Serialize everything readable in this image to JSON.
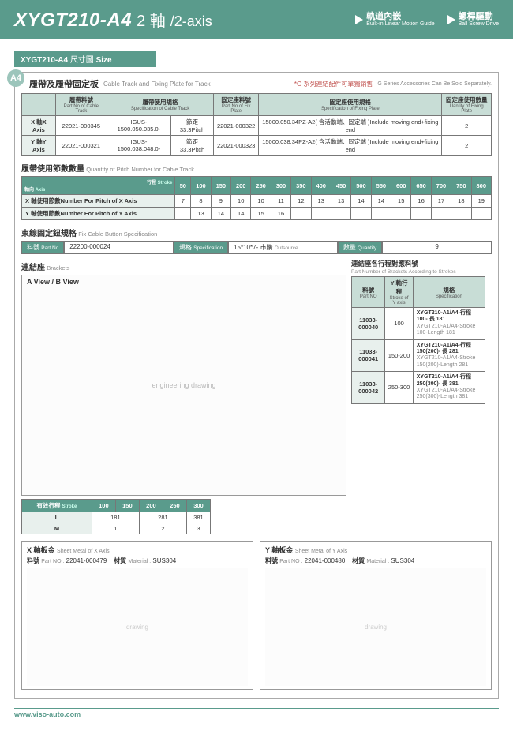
{
  "header": {
    "product_code": "XYGT210-A4",
    "axis_zh": "2 軸",
    "axis_en": "/2-axis",
    "features": [
      {
        "zh": "軌道內嵌",
        "en": "Built-in Linear Motion Guide"
      },
      {
        "zh": "螺桿驅動",
        "en": "Ball Screw Drive"
      }
    ]
  },
  "section_bar": {
    "code": "XYGT210-A4",
    "zh": "尺寸圖",
    "en": "Size"
  },
  "badge": "A4",
  "cable_track": {
    "title_zh": "履帶及履帶固定板",
    "title_en": "Cable Track and Fixing Plate for Track",
    "note_zh": "*G 系列連結配件可單獨銷售",
    "note_en": "G Series Accessories Can Be Sold Separately.",
    "headers": {
      "h1_zh": "履帶料號",
      "h1_en": "Part No of Cable Track",
      "h2_zh": "履帶使用規格",
      "h2_en": "Specification of Cable Track",
      "h3_zh": "固定座料號",
      "h3_en": "Part No of Fix Plate",
      "h4_zh": "固定座使用規格",
      "h4_en": "Specification of Fixing Plate",
      "h5_zh": "固定座使用數量",
      "h5_en": "Uantity of Fixing Plate"
    },
    "rows": [
      {
        "axis_zh": "X 軸",
        "axis_en": "X Axis",
        "partno": "22021-000345",
        "spec": "IGUS-1500.050.035.0-",
        "pitch_zh": "節距",
        "pitch_en": "Pitch",
        "pitch_val": "33.3",
        "fix_partno": "22021-000322",
        "fix_spec_zh": "15000.050.34PZ-A2( 含活動端、固定端 )",
        "fix_spec_en": "Include moving end+fixing end",
        "qty": "2"
      },
      {
        "axis_zh": "Y 軸",
        "axis_en": "Y Axis",
        "partno": "22021-000321",
        "spec": "IGUS-1500.038.048.0-",
        "pitch_zh": "節距",
        "pitch_en": "Pitch",
        "pitch_val": "33.3",
        "fix_partno": "22021-000323",
        "fix_spec_zh": "15000.038.34PZ-A2( 含活動端、固定端 )",
        "fix_spec_en": "Include moving end+fixing end",
        "qty": "2"
      }
    ]
  },
  "pitch_qty": {
    "title_zh": "履帶使用節數數量",
    "title_en": "Quantity of Pitch Number for Cable Track",
    "row_hdr_zh": "軸向",
    "row_hdr_en": "Axis",
    "col_hdr_zh": "行程",
    "col_hdr_en": "Stroke",
    "cols": [
      "50",
      "100",
      "150",
      "200",
      "250",
      "300",
      "350",
      "400",
      "450",
      "500",
      "550",
      "600",
      "650",
      "700",
      "750",
      "800"
    ],
    "rows": [
      {
        "label_zh": "X 軸使用節數",
        "label_en": "Number For Pitch of X Axis",
        "vals": [
          "7",
          "8",
          "9",
          "10",
          "10",
          "11",
          "12",
          "13",
          "13",
          "14",
          "14",
          "15",
          "16",
          "17",
          "18",
          "19"
        ]
      },
      {
        "label_zh": "Y 軸使用節數",
        "label_en": "Number For Pitch of Y Axis",
        "vals": [
          "",
          "13",
          "14",
          "14",
          "15",
          "16",
          "",
          "",
          "",
          "",
          "",
          "",
          "",
          "",
          "",
          ""
        ]
      }
    ]
  },
  "fix_cable": {
    "title_zh": "束線固定鈕規格",
    "title_en": "Fix Cable Button Specification",
    "lbl1_zh": "料號",
    "lbl1_en": "Part No",
    "val1": "22200-000024",
    "lbl2_zh": "規格",
    "lbl2_en": "Specification",
    "val2": "15*10*7- 市購",
    "val2_en": "Outsource",
    "lbl3_zh": "數量",
    "lbl3_en": "Quantity",
    "val3": "9"
  },
  "brackets": {
    "title_zh": "連結座",
    "title_en": "Brackets",
    "table_title_zh": "連結座各行程對應料號",
    "table_title_en": "Part Number of Brackets According to Strokes",
    "headers": {
      "h1_zh": "料號",
      "h1_en": "Part NO",
      "h2_zh": "Y 軸行程",
      "h2_en": "Stroke of Y axis",
      "h3_zh": "規格",
      "h3_en": "Specification"
    },
    "rows": [
      {
        "part": "11033-000040",
        "stroke": "100",
        "spec_main": "XYGT210-A1/A4-行程 100- 長 181",
        "spec_sub": "XYGT210-A1/A4-Stroke 100-Length 181"
      },
      {
        "part": "11033-000041",
        "stroke": "150-200",
        "spec_main": "XYGT210-A1/A4-行程 150(200)- 長 281",
        "spec_sub": "XYGT210-A1/A4-Stroke 150(200)-Length 281"
      },
      {
        "part": "11033-000042",
        "stroke": "250-300",
        "spec_main": "XYGT210-A1/A4-行程 250(300)- 長 381",
        "spec_sub": "XYGT210-A1/A4-Stroke 250(300)-Length 381"
      }
    ],
    "stroke_table": {
      "hdr_zh": "有效行程",
      "hdr_en": "Stroke",
      "cols": [
        "100",
        "150",
        "200",
        "250",
        "300"
      ],
      "rows": [
        {
          "lbl": "L",
          "vals": [
            "181",
            "",
            "281",
            "",
            "381"
          ]
        },
        {
          "lbl": "M",
          "vals": [
            "1",
            "",
            "2",
            "",
            "3"
          ]
        }
      ]
    }
  },
  "sheet_metal": {
    "x": {
      "title_zh": "X 軸板金",
      "title_en": "Sheet Metal of X Axis",
      "part_lbl_zh": "料號",
      "part_lbl_en": "Part NO :",
      "part": "22041-000479",
      "mat_lbl_zh": "材質",
      "mat_lbl_en": "Material :",
      "mat": "SUS304"
    },
    "y": {
      "title_zh": "Y 軸板金",
      "title_en": "Sheet Metal of Y Axis",
      "part_lbl_zh": "料號",
      "part_lbl_en": "Part NO :",
      "part": "22041-000480",
      "mat_lbl_zh": "材質",
      "mat_lbl_en": "Material :",
      "mat": "SUS304"
    }
  },
  "footer": "www.viso-auto.com",
  "colors": {
    "primary": "#5a9b8c",
    "light": "#c8ddd6",
    "badge": "#9cc5bb",
    "note": "#c0504d"
  }
}
